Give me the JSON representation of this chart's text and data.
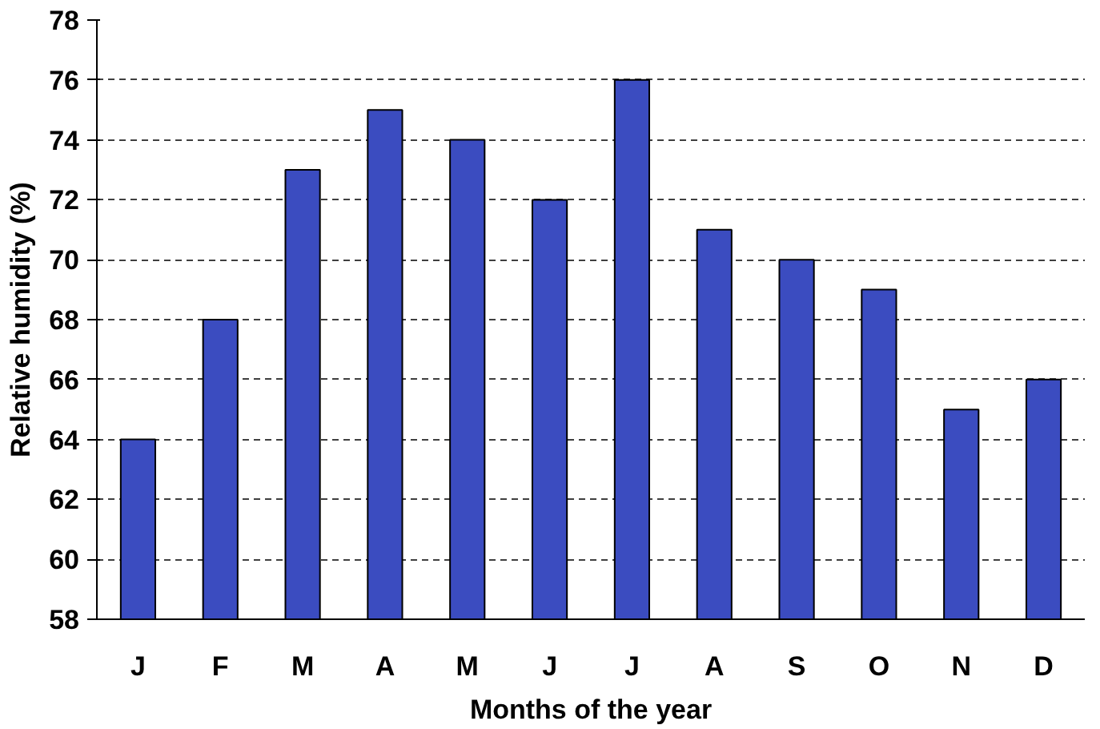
{
  "chart_data": {
    "type": "bar",
    "xlabel": "Months of the year",
    "ylabel": "Relative humidity (%)",
    "categories": [
      "J",
      "F",
      "M",
      "A",
      "M",
      "J",
      "J",
      "A",
      "S",
      "O",
      "N",
      "D"
    ],
    "values": [
      64,
      68,
      73,
      75,
      74,
      72,
      76,
      71,
      70,
      69,
      65,
      66
    ],
    "color": "#3b4cc0",
    "ylim": [
      58,
      78
    ],
    "yticks": [
      58,
      60,
      62,
      64,
      66,
      68,
      70,
      72,
      74,
      76,
      78
    ],
    "grid": "y"
  }
}
